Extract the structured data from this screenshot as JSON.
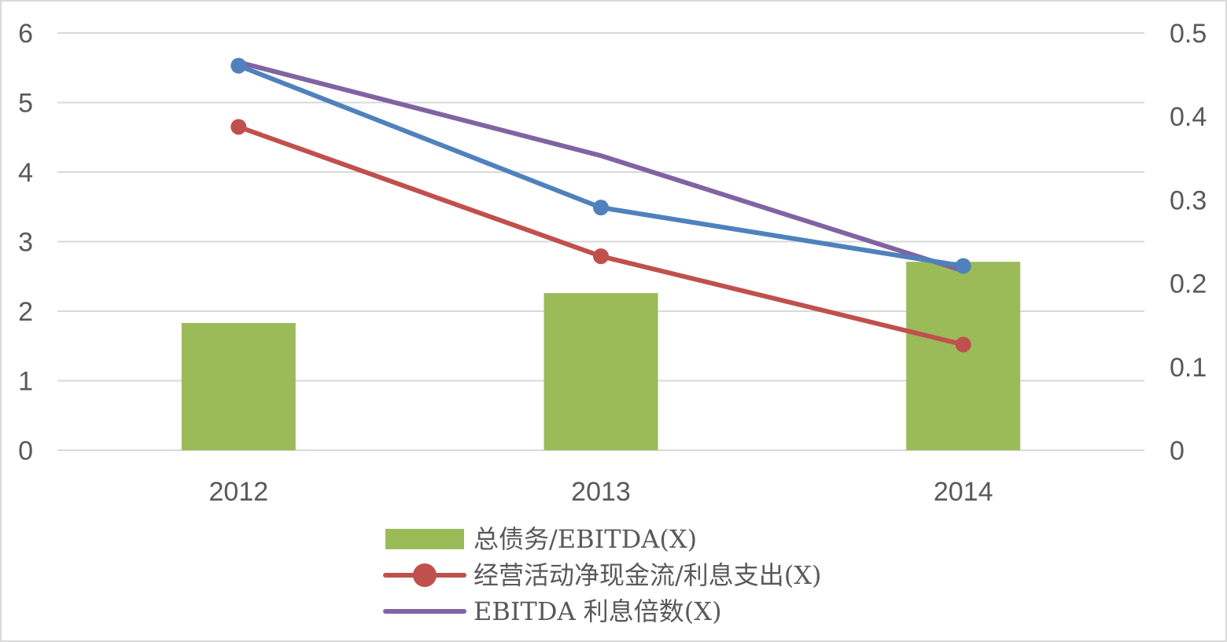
{
  "chart_data": {
    "type": "bar",
    "categories": [
      "2012",
      "2013",
      "2014"
    ],
    "y_left": {
      "ticks": [
        "0",
        "1",
        "2",
        "3",
        "4",
        "5",
        "6"
      ],
      "ylim": [
        0,
        6
      ]
    },
    "y_right": {
      "ticks": [
        "0",
        "0.1",
        "0.2",
        "0.3",
        "0.4",
        "0.5"
      ],
      "ylim": [
        0,
        0.5
      ]
    },
    "grid": true,
    "legend_position": "bottom",
    "series": [
      {
        "name": "总债务/EBITDA(X)",
        "kind": "bar",
        "axis": "left",
        "color": "#9bbb59",
        "values": [
          1.83,
          2.26,
          2.71
        ]
      },
      {
        "name": "经营活动净现金流/利息支出(X)",
        "kind": "line-marker",
        "axis": "left",
        "color": "#c0504d",
        "values": [
          4.65,
          2.79,
          1.52
        ]
      },
      {
        "name": "EBITDA 利息倍数(X)",
        "kind": "line",
        "axis": "right",
        "color": "#8064a2",
        "values": [
          0.465,
          0.353,
          0.215
        ]
      },
      {
        "name": "",
        "kind": "line-marker",
        "axis": "left",
        "color": "#4f81bd",
        "values": [
          5.53,
          3.49,
          2.65
        ]
      }
    ]
  }
}
